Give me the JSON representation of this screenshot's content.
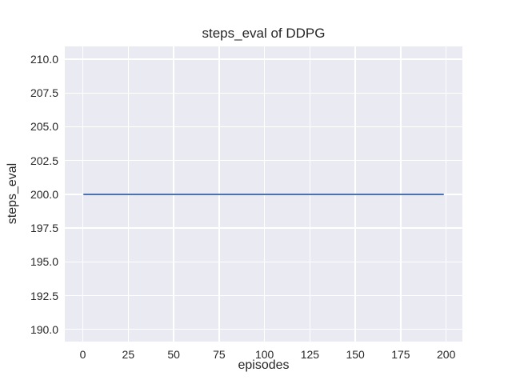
{
  "chart_data": {
    "type": "line",
    "title": "steps_eval of DDPG",
    "xlabel": "episodes",
    "ylabel": "steps_eval",
    "xlim": [
      -9.95,
      208.95
    ],
    "ylim": [
      189.1,
      210.95
    ],
    "x_tick_labels": [
      "0",
      "25",
      "50",
      "75",
      "100",
      "125",
      "150",
      "175",
      "200"
    ],
    "y_tick_labels": [
      "190.0",
      "192.5",
      "195.0",
      "197.5",
      "200.0",
      "202.5",
      "205.0",
      "207.5",
      "210.0"
    ],
    "grid": true,
    "legend_position": "none",
    "series": [
      {
        "name": "DDPG steps_eval",
        "color": "#4c72b0",
        "x": [
          0,
          199
        ],
        "y": [
          200.0,
          200.0
        ]
      }
    ],
    "style": {
      "figure_background": "#ffffff",
      "axes_background": "#eaeaf2",
      "grid_color": "#ffffff",
      "text_color": "#262626"
    }
  }
}
